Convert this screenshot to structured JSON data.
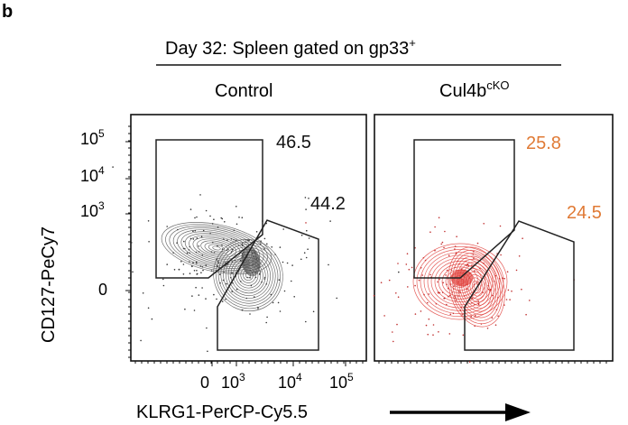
{
  "panel_letter": "b",
  "title": "Day 32: Spleen gated on gp33",
  "title_sup": "+",
  "accent_colors": {
    "control": "#555555",
    "cko": "#e0413c",
    "cko_label": "#e07a35",
    "text": "#111111"
  },
  "chart_data": [
    {
      "type": "scatter",
      "subtype": "flow-cytometry-contour",
      "panel": "Control",
      "header": "Control",
      "header_sup": "",
      "xlabel": "KLRG1-PerCP-Cy5.5",
      "ylabel": "CD127-PeCy7",
      "x_tick_labels": [
        {
          "base": "0",
          "sup": ""
        },
        {
          "base": "10",
          "sup": "3"
        },
        {
          "base": "10",
          "sup": "4"
        },
        {
          "base": "10",
          "sup": "5"
        }
      ],
      "y_tick_labels": [
        {
          "base": "10",
          "sup": "5"
        },
        {
          "base": "10",
          "sup": "4"
        },
        {
          "base": "10",
          "sup": "3"
        },
        {
          "base": "0",
          "sup": ""
        }
      ],
      "gates": [
        {
          "name": "CD127 hi KLRG1 lo",
          "percent": "46.5"
        },
        {
          "name": "KLRG1 hi",
          "percent": "44.2"
        }
      ],
      "label_color": "#111111",
      "contour_color": "#555555",
      "arrow": false
    },
    {
      "type": "scatter",
      "subtype": "flow-cytometry-contour",
      "panel": "Cul4b cKO",
      "header": "Cul4b",
      "header_sup": "cKO",
      "xlabel": "",
      "ylabel": "",
      "gates": [
        {
          "name": "CD127 hi KLRG1 lo",
          "percent": "25.8"
        },
        {
          "name": "KLRG1 hi",
          "percent": "24.5"
        }
      ],
      "label_color": "#e07a35",
      "contour_color": "#e0413c",
      "arrow": true
    }
  ]
}
